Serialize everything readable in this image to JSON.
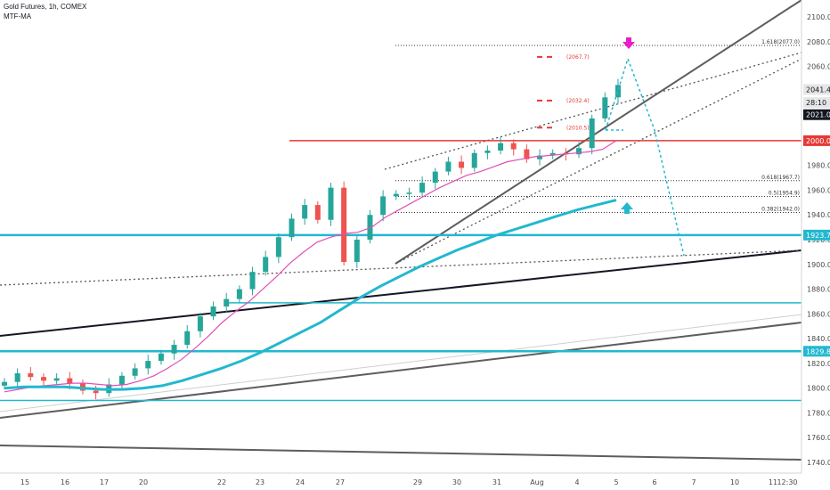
{
  "header": {
    "title": "Gold Futures, 1h, COMEX",
    "indicator": "MTF-MA"
  },
  "chart_data": {
    "type": "line",
    "instrument": "Gold Futures",
    "ylim": [
      1735,
      2110
    ],
    "y_ticks": [
      1740,
      1760,
      1780,
      1800,
      1820,
      1840,
      1860,
      1880,
      1900,
      1920,
      1940,
      1960,
      1980,
      2000,
      2020,
      2040,
      2060,
      2080,
      2100
    ],
    "y_tick_labels": [
      "1740.0",
      "1760.0",
      "1780.0",
      "1800.0",
      "1820.0",
      "1840.0",
      "1860.0",
      "1880.0",
      "1900.0",
      "1920.0",
      "1940.0",
      "1960.0",
      "1980.0",
      "2000.0",
      "2020.0",
      "2040.0",
      "2060.0",
      "2080.0",
      "2100.0"
    ],
    "x_ticks": [
      "15",
      "16",
      "17",
      "20",
      "22",
      "23",
      "24",
      "27",
      "29",
      "30",
      "31",
      "Aug",
      "4",
      "5",
      "6",
      "7",
      "10",
      "11",
      "12:30"
    ],
    "price_series_close": [
      1805,
      1812,
      1809,
      1806,
      1808,
      1804,
      1798,
      1796,
      1803,
      1810,
      1816,
      1822,
      1828,
      1835,
      1846,
      1858,
      1866,
      1872,
      1880,
      1894,
      1906,
      1922,
      1937,
      1948,
      1936,
      1962,
      1902,
      1920,
      1940,
      1955,
      1957,
      1958,
      1966,
      1975,
      1983,
      1978,
      1990,
      1992,
      1998,
      1993,
      1985,
      1988,
      1990,
      1989,
      1994,
      2018,
      2035,
      2045
    ],
    "series": [
      {
        "name": "",
        "color": "#e04fb8",
        "values": [
          1797,
          1799,
          1801,
          1802,
          1803,
          1804,
          1804,
          1803,
          1802,
          1803,
          1806,
          1810,
          1816,
          1823,
          1832,
          1842,
          1853,
          1862,
          1870,
          1880,
          1890,
          1901,
          1910,
          1918,
          1922,
          1925,
          1926,
          1930,
          1938,
          1944,
          1950,
          1956,
          1962,
          1967,
          1972,
          1975,
          1979,
          1983,
          1985,
          1987,
          1988,
          1989,
          1990,
          1991,
          1993,
          2000
        ]
      },
      {
        "name": "",
        "color": "#22b8cf",
        "values": [
          1800,
          1801,
          1801,
          1801,
          1800,
          1799,
          1799,
          1800,
          1802,
          1806,
          1811,
          1816,
          1822,
          1829,
          1837,
          1845,
          1853,
          1863,
          1873,
          1882,
          1890,
          1898,
          1905,
          1912,
          1918,
          1924,
          1929,
          1934,
          1939,
          1944,
          1948,
          1952
        ]
      }
    ],
    "horizontal_levels": [
      {
        "price": 2000.0,
        "label": "2000.0",
        "color": "#e53935"
      },
      {
        "price": 1923.7,
        "label": "1923.7",
        "color": "#22b8cf"
      },
      {
        "price": 1829.8,
        "label": "1829.8",
        "color": "#22b8cf"
      },
      {
        "price": 1869,
        "label": "",
        "color": "#22b8cf"
      },
      {
        "price": 1790,
        "label": "",
        "color": "#22b8cf"
      }
    ],
    "fib_levels": [
      {
        "label": "1.618(2077.0)",
        "price": 2077.0
      },
      {
        "label": "0.618(1967.7)",
        "price": 1967.7
      },
      {
        "label": "0.5(1954.9)",
        "price": 1954.9
      },
      {
        "label": "0.382(1942.0)",
        "price": 1942.0
      }
    ],
    "target_annotations": [
      {
        "label": "(2067.7)",
        "price": 2067.7
      },
      {
        "label": "(2032.4)",
        "price": 2032.4
      },
      {
        "label": "(2010.5)",
        "price": 2010.5
      }
    ],
    "price_badges": [
      {
        "label": "2041.4",
        "price": 2041.4,
        "bg": "#e6e6e6",
        "fg": "#131722"
      },
      {
        "label": "28:10",
        "price": 2030.8,
        "bg": "#e6e6e6",
        "fg": "#131722"
      },
      {
        "label": "2021.0",
        "price": 2021.0,
        "bg": "#131722",
        "fg": "#ffffff"
      }
    ],
    "grid": false,
    "legend": "none"
  },
  "colors": {
    "bull": "#26a69a",
    "bear": "#ef5350",
    "trend_dark": "#131722",
    "trend_grey": "#5d5d5d",
    "arrow_down": "#e91ec8",
    "arrow_up": "#22b8cf"
  }
}
